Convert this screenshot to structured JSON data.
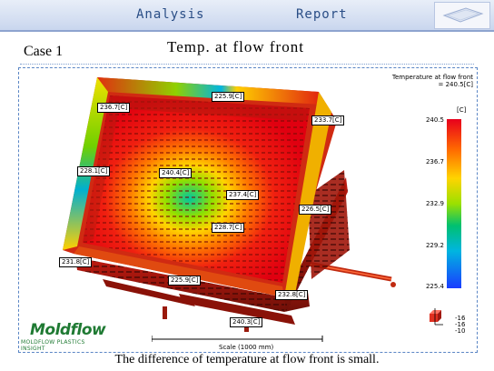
{
  "header": {
    "tab_analysis": "Analysis",
    "tab_report": "Report"
  },
  "slide": {
    "case_label": "Case 1",
    "title": "Temp. at flow front",
    "caption": "The difference of temperature at flow front is small."
  },
  "legend": {
    "title_line1": "Temperature at flow front",
    "title_line2": "= 240.5[C]",
    "unit": "[C]",
    "ticks": [
      "240.5",
      "236.7",
      "232.9",
      "229.2",
      "225.4"
    ]
  },
  "value_labels": [
    "225.9[C]",
    "236.7[C]",
    "233.7[C]",
    "228.1[C]",
    "240.4[C]",
    "237.4[C]",
    "226.5[C]",
    "228.7[C]",
    "231.8[C]",
    "225.9[C]",
    "232.8[C]",
    "240.3[C]"
  ],
  "axis_values": [
    "-16",
    "-16",
    "-10"
  ],
  "logo": {
    "name": "Moldflow",
    "tagline": "MOLDFLOW PLASTICS INSIGHT"
  },
  "scale_label": "Scale (1000 mm)"
}
